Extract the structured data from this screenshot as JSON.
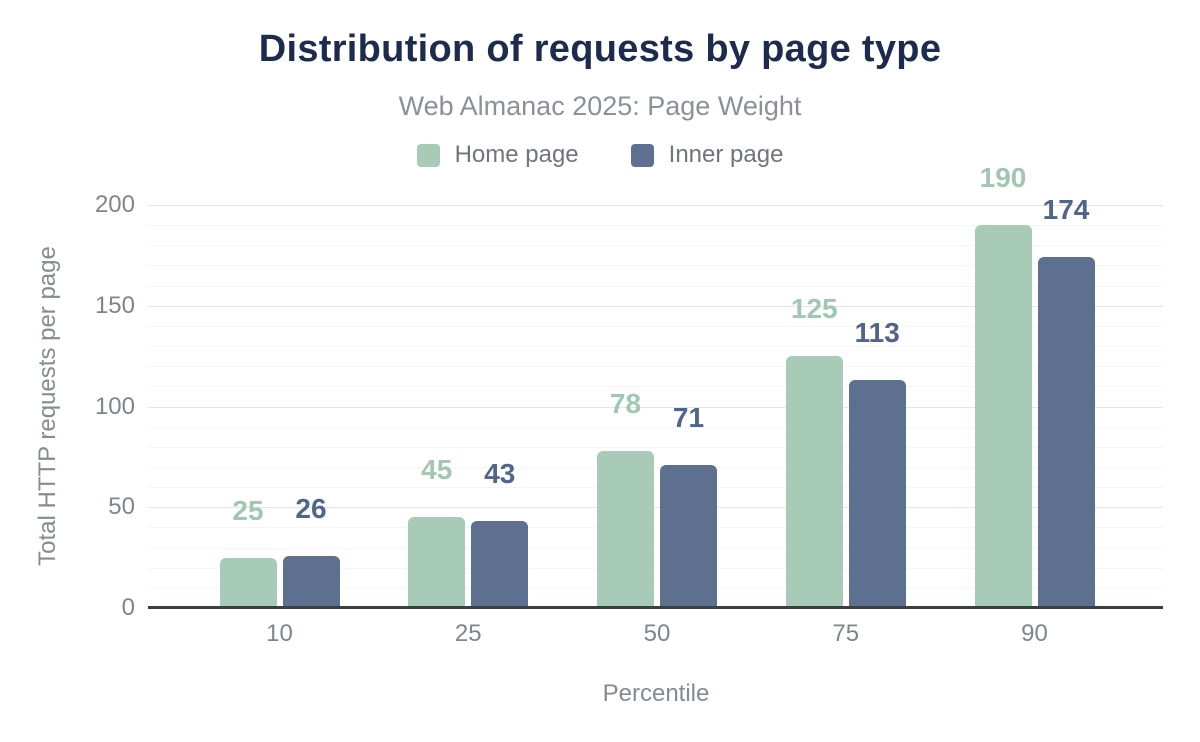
{
  "chart_data": {
    "type": "bar",
    "title": "Distribution of requests by page type",
    "subtitle": "Web Almanac 2025: Page Weight",
    "xlabel": "Percentile",
    "ylabel": "Total HTTP requests per page",
    "categories": [
      "10",
      "25",
      "50",
      "75",
      "90"
    ],
    "series": [
      {
        "name": "Home page",
        "values": [
          25,
          45,
          78,
          125,
          190
        ],
        "color": "#a7cbb7",
        "label_color": "#a1c7b2"
      },
      {
        "name": "Inner page",
        "values": [
          26,
          43,
          71,
          113,
          174
        ],
        "color": "#5e7090",
        "label_color": "#51648a"
      }
    ],
    "y_ticks": [
      0,
      50,
      100,
      150,
      200
    ],
    "ylim": [
      0,
      200
    ],
    "minor_grid_step": 10,
    "major_grid_step": 50,
    "grid": true,
    "legend_position": "top",
    "data_labels_shown": true
  },
  "style": {
    "background": "#ffffff",
    "title_color": "#1d2c4e",
    "subtitle_color": "#8b9099",
    "axis_text_color": "#7f848d",
    "grid_major_color": "#e3e5e8",
    "grid_minor_color": "#f4f5f7",
    "axis_line_color": "#3a3f46"
  }
}
